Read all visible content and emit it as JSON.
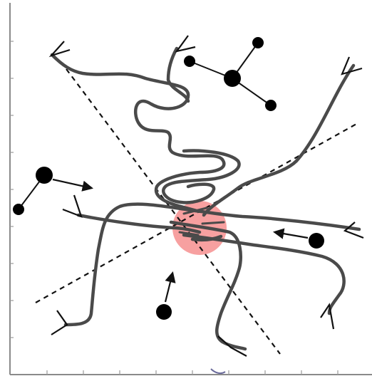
{
  "figure": {
    "background": "#ffffff",
    "path_color": "#4a4a4a",
    "highlight_color": "#f7a0a0",
    "ink_color": "#000000"
  }
}
